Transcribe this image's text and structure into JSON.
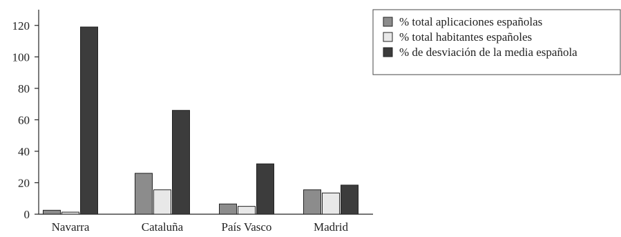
{
  "chart_data": {
    "type": "bar",
    "categories": [
      "Navarra",
      "Cataluña",
      "País Vasco",
      "Madrid"
    ],
    "series": [
      {
        "name": "% total aplicaciones españolas",
        "values": [
          2.5,
          26,
          6.5,
          15.5
        ],
        "color": "#8c8c8c"
      },
      {
        "name": "% total habitantes españoles",
        "values": [
          1.3,
          15.5,
          5,
          13.5
        ],
        "color": "#e8e8e8"
      },
      {
        "name": "% de desviación de la media española",
        "values": [
          119,
          66,
          32,
          18.5
        ],
        "color": "#3c3c3c"
      }
    ],
    "ylim": [
      0,
      130
    ],
    "yticks": [
      0,
      20,
      40,
      60,
      80,
      100,
      120
    ],
    "ytick_labels": [
      "0",
      "20",
      "40",
      "60",
      "80",
      "100",
      "120"
    ],
    "title": "",
    "xlabel": "",
    "ylabel": "",
    "grid": false,
    "legend_position": "top-right"
  }
}
